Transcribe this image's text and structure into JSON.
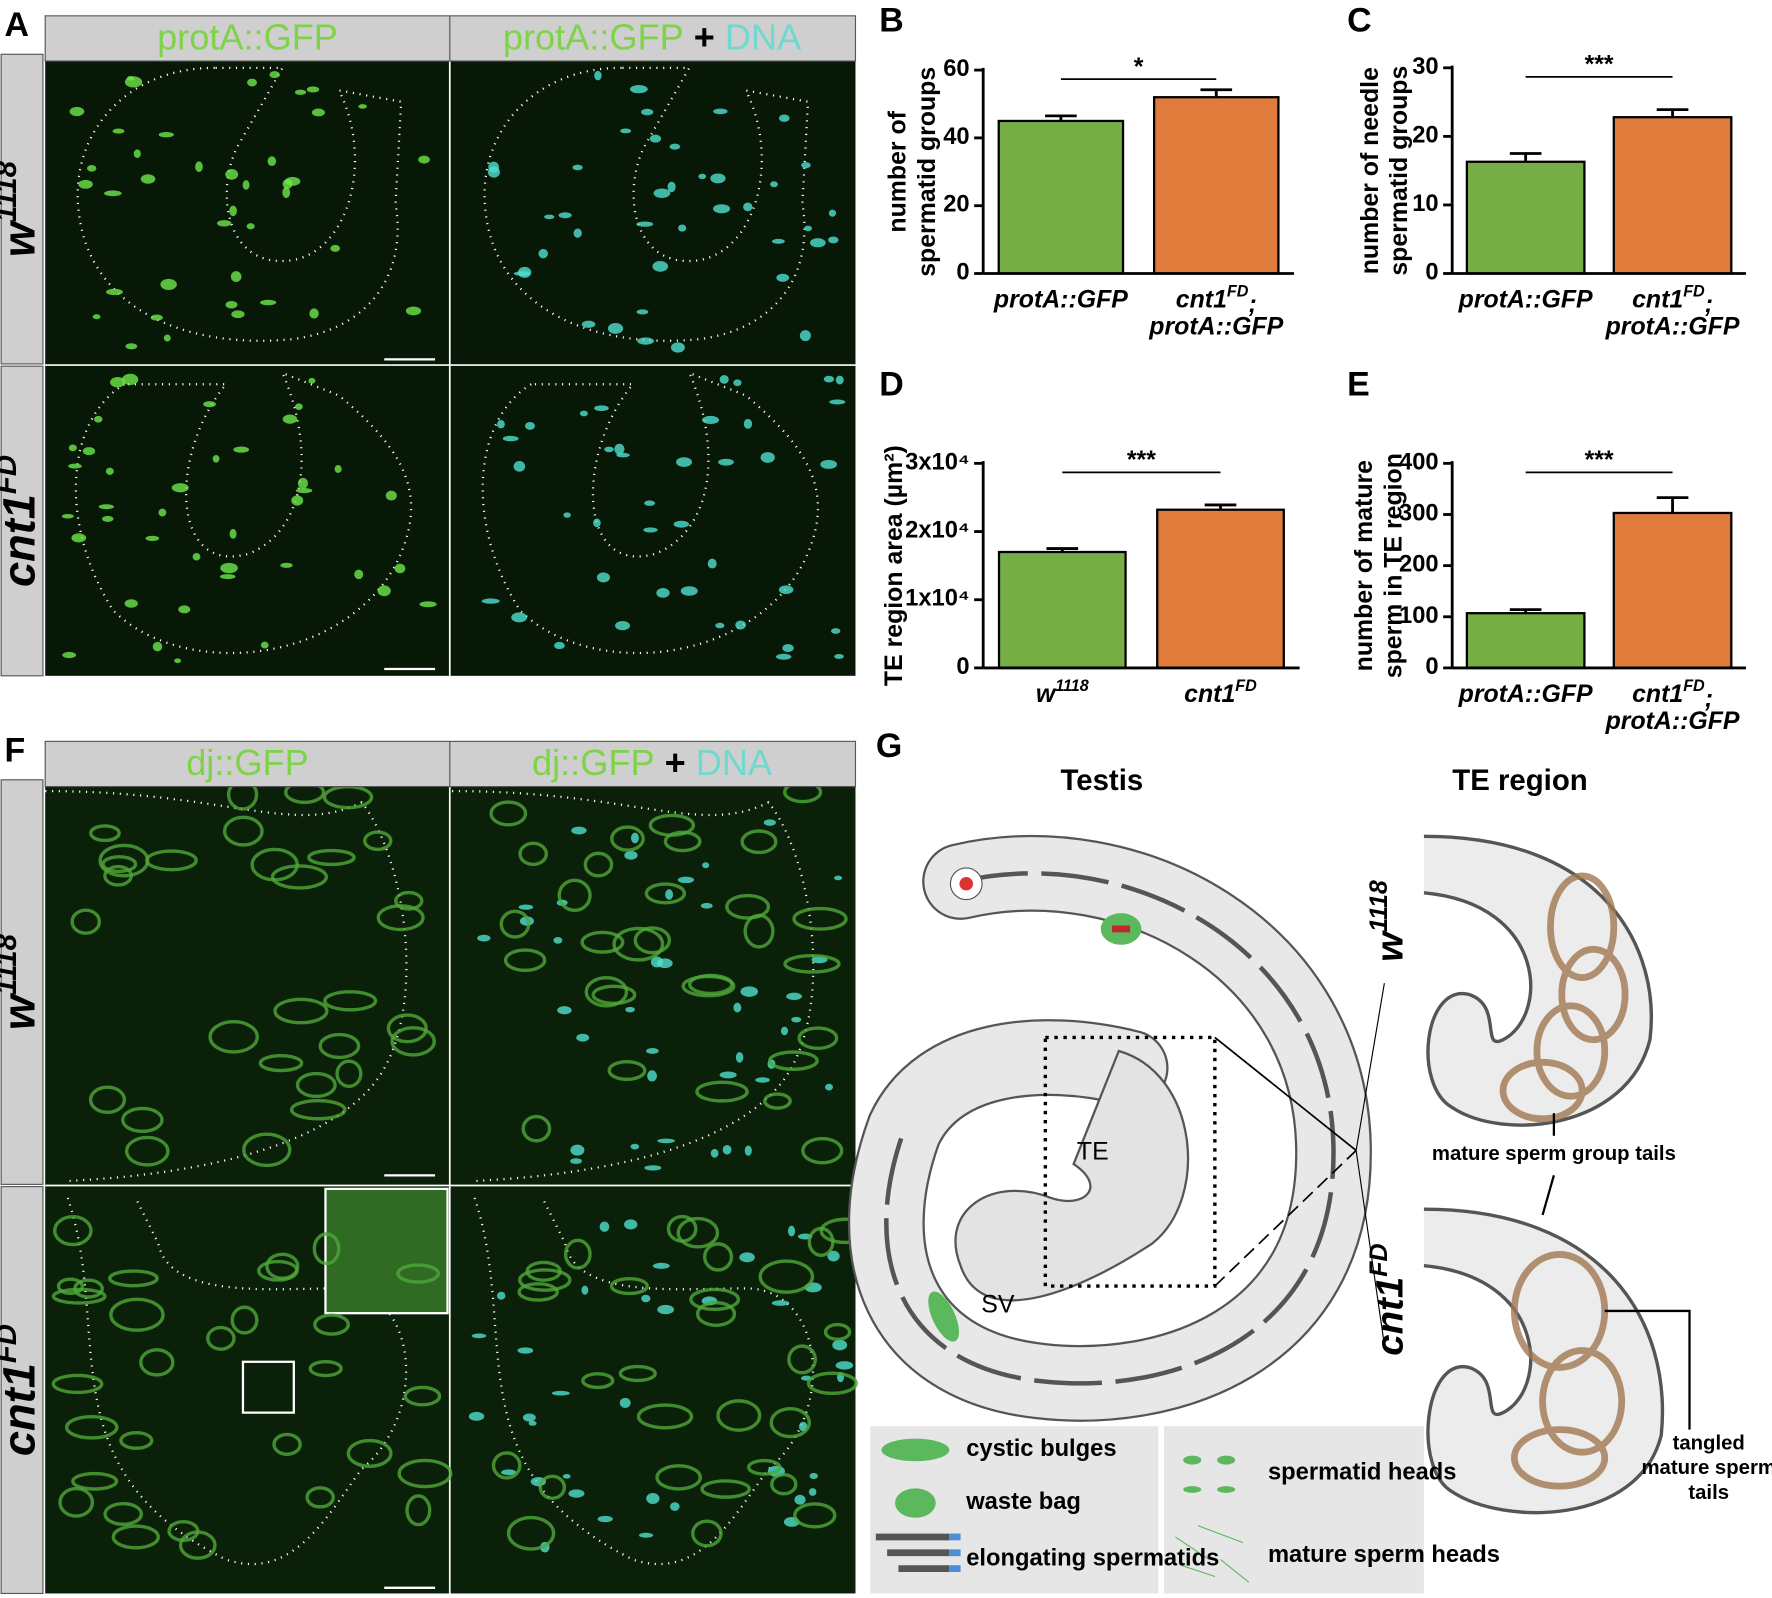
{
  "panel_a": {
    "panel": "A",
    "column_1": "protA::GFP",
    "column_2": [
      "protA::GFP",
      "+",
      "DNA"
    ],
    "rows": [
      "w1118",
      "cnt1FD"
    ]
  },
  "panel_f": {
    "panel": "F",
    "column_1": "dj::GFP",
    "column_2": [
      "dj::GFP",
      "+",
      "DNA"
    ],
    "rows": [
      "w1118",
      "cnt1FD"
    ]
  },
  "chart_data": [
    {
      "type": "bar",
      "panel": "B",
      "ylabel": "number of spermatid groups",
      "categories": [
        "protA::GFP",
        "cnt1FD; protA::GFP"
      ],
      "values": [
        45,
        52
      ],
      "errors": [
        1.5,
        2.2
      ],
      "colors": [
        "#76ad45",
        "#e07c3b"
      ],
      "ylim": [
        0,
        60
      ],
      "yticks": [
        0,
        20,
        40,
        60
      ],
      "significance": "*"
    },
    {
      "type": "bar",
      "panel": "C",
      "ylabel": "number of needle spermatid groups",
      "categories": [
        "protA::GFP",
        "cnt1FD; protA::GFP"
      ],
      "values": [
        16.3,
        22.8
      ],
      "errors": [
        1.2,
        1.1
      ],
      "colors": [
        "#76ad45",
        "#e07c3b"
      ],
      "ylim": [
        0,
        30
      ],
      "yticks": [
        0,
        10,
        20,
        30
      ],
      "significance": "***"
    },
    {
      "type": "bar",
      "panel": "D",
      "ylabel": "TE region area (µm²)",
      "categories": [
        "w1118",
        "cnt1FD"
      ],
      "values": [
        17000,
        23200
      ],
      "errors": [
        500,
        700
      ],
      "colors": [
        "#76ad45",
        "#e07c3b"
      ],
      "ylim": [
        0,
        30000
      ],
      "yticks": [
        0,
        {
          "value": 10000,
          "label": "1x10⁴"
        },
        {
          "value": 20000,
          "label": "2x10⁴"
        },
        {
          "value": 30000,
          "label": "3x10⁴"
        }
      ],
      "significance": "***"
    },
    {
      "type": "bar",
      "panel": "E",
      "ylabel": "number of mature sperm in TE region",
      "categories": [
        "protA::GFP",
        "cnt1FD; protA::GFP"
      ],
      "values": [
        107,
        303
      ],
      "errors": [
        7,
        30
      ],
      "colors": [
        "#76ad45",
        "#e07c3b"
      ],
      "ylim": [
        0,
        400
      ],
      "yticks": [
        0,
        100,
        200,
        300,
        400
      ],
      "significance": "***"
    }
  ],
  "panel_g": {
    "panel": "G",
    "testis_title": "Testis",
    "te_region_title": "TE region",
    "te_label": "TE",
    "sv_label": "SV",
    "genotypes": [
      "w1118",
      "cnt1FD"
    ],
    "callouts": [
      "mature sperm group tails",
      "tangled mature sperm tails"
    ],
    "legend": [
      "cystic bulges",
      "waste bag",
      "elongating spermatids",
      "spermatid heads",
      "mature sperm heads"
    ]
  }
}
